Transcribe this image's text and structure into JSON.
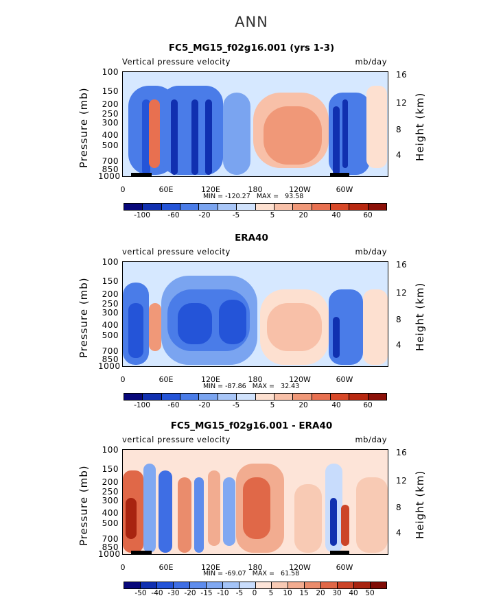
{
  "title": "ANN",
  "pressure_axis": {
    "title": "Pressure (mb)",
    "ticks": [
      "100",
      "150",
      "200",
      "250",
      "300",
      "400",
      "500",
      "700",
      "850",
      "1000"
    ]
  },
  "height_axis": {
    "title": "Height (km)",
    "ticks": [
      "16",
      "12",
      "8",
      "4"
    ]
  },
  "x_axis": {
    "ticks": [
      "0",
      "60E",
      "120E",
      "180",
      "120W",
      "60W"
    ]
  },
  "panels": [
    {
      "title": "FC5_MG15_f02g16.001 (yrs 1-3)",
      "left_subtitle": "Vertical pressure velocity",
      "right_subtitle": "mb/day",
      "min_label": "MIN = -120.27",
      "max_label": "MAX =   93.58",
      "colorbar_labels": [
        "-100",
        "-60",
        "-20",
        "-5",
        "5",
        "20",
        "40",
        "60"
      ]
    },
    {
      "title": "ERA40",
      "left_subtitle": "vertical pressure velocity",
      "right_subtitle": "mb/day",
      "min_label": "MIN = -87.86",
      "max_label": "MAX =   32.43",
      "colorbar_labels": [
        "-100",
        "-60",
        "-20",
        "-5",
        "5",
        "20",
        "40",
        "60"
      ]
    },
    {
      "title": "FC5_MG15_f02g16.001 - ERA40",
      "left_subtitle": "vertical pressure velocity",
      "right_subtitle": "mb/day",
      "min_label": "MIN = -69.07",
      "max_label": "MAX =   61.58",
      "colorbar_labels": [
        "-50",
        "-40",
        "-30",
        "-20",
        "-15",
        "-10",
        "-5",
        "0",
        "5",
        "10",
        "15",
        "20",
        "30",
        "40",
        "50"
      ]
    }
  ],
  "colors": {
    "cbar_main": [
      "#08087a",
      "#1030b0",
      "#2454d8",
      "#4a7ce8",
      "#7aa4f0",
      "#a8c6f8",
      "#d0e2fc",
      "#fde0d0",
      "#f8c0a8",
      "#f09878",
      "#e87050",
      "#d84828",
      "#b82810",
      "#8c1008"
    ],
    "cbar_diff": [
      "#08087a",
      "#1030b0",
      "#2454d8",
      "#3e6ee4",
      "#5e8cec",
      "#80a8f2",
      "#a4c4f8",
      "#c8dcfc",
      "#fde4d8",
      "#f8cab4",
      "#f2ac90",
      "#ea8c6c",
      "#e06848",
      "#cc4428",
      "#a82410",
      "#800c06"
    ]
  },
  "chart_data": [
    {
      "type": "heatmap",
      "title": "FC5_MG15_f02g16.001 (yrs 1-3)",
      "variable": "Vertical pressure velocity",
      "units": "mb/day",
      "x_ticks": [
        "0",
        "60E",
        "120E",
        "180",
        "120W",
        "60W"
      ],
      "y_ticks_pressure": [
        100,
        150,
        200,
        250,
        300,
        400,
        500,
        700,
        850,
        1000
      ],
      "y_ticks_height": [
        16,
        12,
        8,
        4
      ],
      "min": -120.27,
      "max": 93.58,
      "contour_levels": [
        -100,
        -60,
        -20,
        -5,
        5,
        20,
        40,
        60
      ]
    },
    {
      "type": "heatmap",
      "title": "ERA40",
      "variable": "vertical pressure velocity",
      "units": "mb/day",
      "x_ticks": [
        "0",
        "60E",
        "120E",
        "180",
        "120W",
        "60W"
      ],
      "y_ticks_pressure": [
        100,
        150,
        200,
        250,
        300,
        400,
        500,
        700,
        850,
        1000
      ],
      "y_ticks_height": [
        16,
        12,
        8,
        4
      ],
      "min": -87.86,
      "max": 32.43,
      "contour_levels": [
        -100,
        -60,
        -20,
        -5,
        5,
        20,
        40,
        60
      ]
    },
    {
      "type": "heatmap",
      "title": "FC5_MG15_f02g16.001 - ERA40",
      "variable": "vertical pressure velocity",
      "units": "mb/day",
      "x_ticks": [
        "0",
        "60E",
        "120E",
        "180",
        "120W",
        "60W"
      ],
      "y_ticks_pressure": [
        100,
        150,
        200,
        250,
        300,
        400,
        500,
        700,
        850,
        1000
      ],
      "y_ticks_height": [
        16,
        12,
        8,
        4
      ],
      "min": -69.07,
      "max": 61.58,
      "contour_levels": [
        -50,
        -40,
        -30,
        -20,
        -15,
        -10,
        -5,
        0,
        5,
        10,
        15,
        20,
        30,
        40,
        50
      ]
    }
  ]
}
